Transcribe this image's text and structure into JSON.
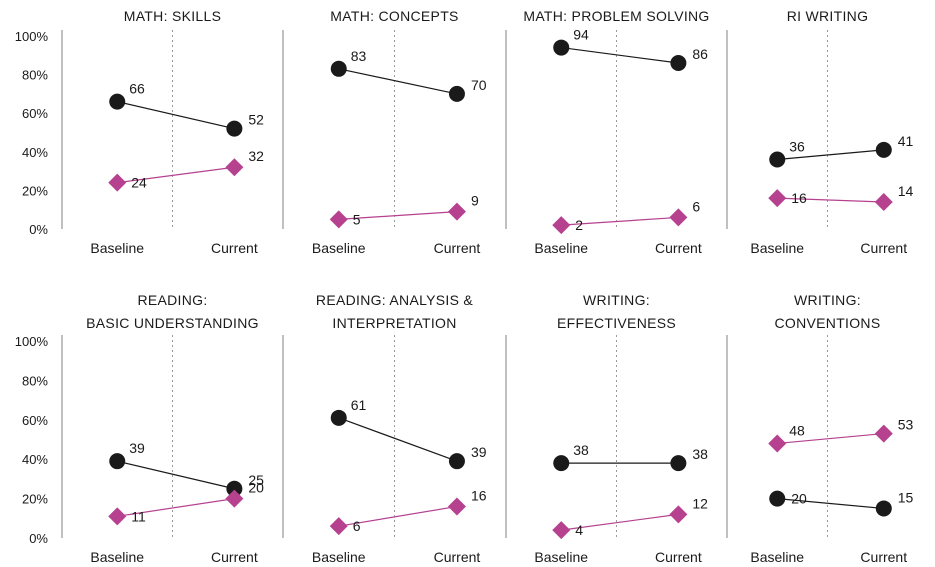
{
  "colors": {
    "series_a": "#1a1a1a",
    "series_b": "#b5418f",
    "axis": "#808080",
    "divider": "#999999"
  },
  "chart_data": [
    {
      "type": "line",
      "title": [
        "MATH: SKILLS"
      ],
      "categories": [
        "Baseline",
        "Current"
      ],
      "ylim": [
        0,
        100
      ],
      "yticks": [
        "0%",
        "20%",
        "40%",
        "60%",
        "80%",
        "100%"
      ],
      "series": [
        {
          "marker": "circle",
          "values": [
            66,
            52
          ]
        },
        {
          "marker": "diamond",
          "values": [
            24,
            32
          ]
        }
      ]
    },
    {
      "type": "line",
      "title": [
        "MATH: CONCEPTS"
      ],
      "categories": [
        "Baseline",
        "Current"
      ],
      "ylim": [
        0,
        100
      ],
      "series": [
        {
          "marker": "circle",
          "values": [
            83,
            70
          ]
        },
        {
          "marker": "diamond",
          "values": [
            5,
            9
          ]
        }
      ]
    },
    {
      "type": "line",
      "title": [
        "MATH: PROBLEM SOLVING"
      ],
      "categories": [
        "Baseline",
        "Current"
      ],
      "ylim": [
        0,
        100
      ],
      "series": [
        {
          "marker": "circle",
          "values": [
            94,
            86
          ]
        },
        {
          "marker": "diamond",
          "values": [
            2,
            6
          ]
        }
      ]
    },
    {
      "type": "line",
      "title": [
        "RI WRITING"
      ],
      "categories": [
        "Baseline",
        "Current"
      ],
      "ylim": [
        0,
        100
      ],
      "series": [
        {
          "marker": "circle",
          "values": [
            36,
            41
          ]
        },
        {
          "marker": "diamond",
          "values": [
            16,
            14
          ]
        }
      ]
    },
    {
      "type": "line",
      "title": [
        "READING:",
        "BASIC UNDERSTANDING"
      ],
      "categories": [
        "Baseline",
        "Current"
      ],
      "ylim": [
        0,
        100
      ],
      "yticks": [
        "0%",
        "20%",
        "40%",
        "60%",
        "80%",
        "100%"
      ],
      "series": [
        {
          "marker": "circle",
          "values": [
            39,
            25
          ]
        },
        {
          "marker": "diamond",
          "values": [
            11,
            20
          ]
        }
      ]
    },
    {
      "type": "line",
      "title": [
        "READING: ANALYSIS &",
        "INTERPRETATION"
      ],
      "categories": [
        "Baseline",
        "Current"
      ],
      "ylim": [
        0,
        100
      ],
      "series": [
        {
          "marker": "circle",
          "values": [
            61,
            39
          ]
        },
        {
          "marker": "diamond",
          "values": [
            6,
            16
          ]
        }
      ]
    },
    {
      "type": "line",
      "title": [
        "WRITING:",
        "EFFECTIVENESS"
      ],
      "categories": [
        "Baseline",
        "Current"
      ],
      "ylim": [
        0,
        100
      ],
      "series": [
        {
          "marker": "circle",
          "values": [
            38,
            38
          ]
        },
        {
          "marker": "diamond",
          "values": [
            4,
            12
          ]
        }
      ]
    },
    {
      "type": "line",
      "title": [
        "WRITING:",
        "CONVENTIONS"
      ],
      "categories": [
        "Baseline",
        "Current"
      ],
      "ylim": [
        0,
        100
      ],
      "series": [
        {
          "marker": "circle",
          "values": [
            20,
            15
          ]
        },
        {
          "marker": "diamond",
          "values": [
            48,
            53
          ]
        }
      ]
    }
  ]
}
